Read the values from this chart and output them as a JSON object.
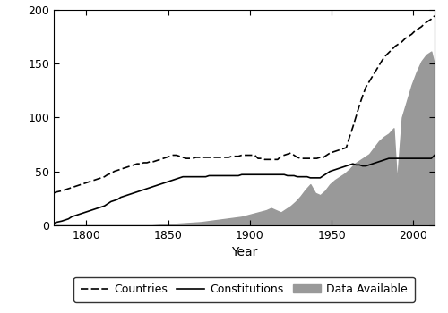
{
  "title": "",
  "xlabel": "Year",
  "ylabel": "",
  "xlim": [
    1780,
    2013
  ],
  "ylim": [
    0,
    200
  ],
  "yticks": [
    0,
    50,
    100,
    150,
    200
  ],
  "xticks": [
    1800,
    1850,
    1900,
    1950,
    2000
  ],
  "background_color": "#ffffff",
  "border_color": "#000000",
  "countries": {
    "years": [
      1780,
      1782,
      1785,
      1787,
      1789,
      1791,
      1793,
      1795,
      1797,
      1799,
      1801,
      1803,
      1805,
      1807,
      1809,
      1811,
      1813,
      1815,
      1817,
      1819,
      1821,
      1823,
      1825,
      1827,
      1829,
      1831,
      1833,
      1835,
      1837,
      1839,
      1841,
      1843,
      1845,
      1847,
      1849,
      1851,
      1853,
      1855,
      1857,
      1859,
      1861,
      1863,
      1865,
      1867,
      1869,
      1871,
      1873,
      1875,
      1877,
      1879,
      1881,
      1883,
      1885,
      1887,
      1889,
      1891,
      1893,
      1895,
      1897,
      1899,
      1901,
      1903,
      1905,
      1907,
      1909,
      1911,
      1913,
      1915,
      1917,
      1919,
      1921,
      1923,
      1925,
      1927,
      1929,
      1931,
      1933,
      1935,
      1937,
      1939,
      1941,
      1943,
      1945,
      1947,
      1949,
      1951,
      1953,
      1955,
      1957,
      1959,
      1961,
      1963,
      1965,
      1967,
      1969,
      1971,
      1973,
      1975,
      1977,
      1979,
      1981,
      1983,
      1985,
      1987,
      1989,
      1991,
      1993,
      1995,
      1997,
      1999,
      2001,
      2003,
      2005,
      2007,
      2009,
      2011,
      2013
    ],
    "values": [
      30,
      31,
      32,
      33,
      34,
      35,
      36,
      37,
      38,
      39,
      40,
      41,
      42,
      43,
      44,
      45,
      47,
      48,
      50,
      51,
      52,
      53,
      54,
      55,
      56,
      57,
      57,
      58,
      58,
      59,
      59,
      60,
      61,
      62,
      63,
      64,
      65,
      65,
      64,
      63,
      62,
      62,
      62,
      63,
      63,
      63,
      63,
      63,
      63,
      63,
      63,
      63,
      63,
      63,
      64,
      64,
      64,
      65,
      65,
      65,
      65,
      65,
      62,
      62,
      61,
      61,
      61,
      61,
      61,
      64,
      65,
      66,
      67,
      65,
      63,
      62,
      62,
      62,
      62,
      62,
      62,
      63,
      63,
      65,
      67,
      68,
      69,
      70,
      71,
      72,
      82,
      91,
      101,
      111,
      120,
      128,
      133,
      138,
      143,
      148,
      153,
      157,
      160,
      163,
      166,
      168,
      170,
      173,
      175,
      177,
      180,
      182,
      184,
      187,
      189,
      191,
      194
    ]
  },
  "constitutions": {
    "years": [
      1780,
      1782,
      1785,
      1787,
      1789,
      1791,
      1793,
      1795,
      1797,
      1799,
      1801,
      1803,
      1805,
      1807,
      1809,
      1811,
      1813,
      1815,
      1817,
      1819,
      1821,
      1823,
      1825,
      1827,
      1829,
      1831,
      1833,
      1835,
      1837,
      1839,
      1841,
      1843,
      1845,
      1847,
      1849,
      1851,
      1853,
      1855,
      1857,
      1859,
      1861,
      1863,
      1865,
      1867,
      1869,
      1871,
      1873,
      1875,
      1877,
      1879,
      1881,
      1883,
      1885,
      1887,
      1889,
      1891,
      1893,
      1895,
      1897,
      1899,
      1901,
      1903,
      1905,
      1907,
      1909,
      1911,
      1913,
      1915,
      1917,
      1919,
      1921,
      1923,
      1925,
      1927,
      1929,
      1931,
      1933,
      1935,
      1937,
      1939,
      1941,
      1943,
      1945,
      1947,
      1949,
      1951,
      1953,
      1955,
      1957,
      1959,
      1961,
      1963,
      1965,
      1967,
      1969,
      1971,
      1973,
      1975,
      1977,
      1979,
      1981,
      1983,
      1985,
      1987,
      1989,
      1991,
      1993,
      1995,
      1997,
      1999,
      2001,
      2003,
      2005,
      2007,
      2009,
      2011,
      2013
    ],
    "values": [
      2,
      3,
      4,
      5,
      6,
      8,
      9,
      10,
      11,
      12,
      13,
      14,
      15,
      16,
      17,
      18,
      20,
      22,
      23,
      24,
      26,
      27,
      28,
      29,
      30,
      31,
      32,
      33,
      34,
      35,
      36,
      37,
      38,
      39,
      40,
      41,
      42,
      43,
      44,
      45,
      45,
      45,
      45,
      45,
      45,
      45,
      45,
      46,
      46,
      46,
      46,
      46,
      46,
      46,
      46,
      46,
      46,
      47,
      47,
      47,
      47,
      47,
      47,
      47,
      47,
      47,
      47,
      47,
      47,
      47,
      47,
      46,
      46,
      46,
      45,
      45,
      45,
      45,
      44,
      44,
      44,
      44,
      46,
      48,
      50,
      51,
      52,
      53,
      54,
      55,
      56,
      57,
      56,
      56,
      55,
      55,
      56,
      57,
      58,
      59,
      60,
      61,
      62,
      62,
      62,
      62,
      62,
      62,
      62,
      62,
      62,
      62,
      62,
      62,
      62,
      62,
      65
    ]
  },
  "data_available": {
    "years": [
      1780,
      1800,
      1810,
      1820,
      1830,
      1840,
      1850,
      1860,
      1870,
      1875,
      1880,
      1885,
      1890,
      1895,
      1900,
      1905,
      1910,
      1913,
      1916,
      1919,
      1922,
      1925,
      1928,
      1931,
      1934,
      1937,
      1940,
      1943,
      1946,
      1949,
      1952,
      1955,
      1958,
      1961,
      1964,
      1967,
      1970,
      1973,
      1976,
      1979,
      1982,
      1985,
      1988,
      1990,
      1993,
      1996,
      1999,
      2002,
      2005,
      2008,
      2011,
      2013
    ],
    "values": [
      0,
      0,
      0,
      0,
      0,
      0,
      1,
      2,
      3,
      4,
      5,
      6,
      7,
      8,
      10,
      12,
      14,
      16,
      14,
      12,
      15,
      18,
      22,
      27,
      33,
      38,
      30,
      28,
      32,
      38,
      42,
      45,
      48,
      52,
      57,
      60,
      63,
      66,
      72,
      78,
      82,
      85,
      90,
      40,
      100,
      115,
      130,
      142,
      152,
      158,
      161,
      148
    ]
  },
  "line_color": "#000000",
  "fill_color": "#999999",
  "line_width": 1.2
}
